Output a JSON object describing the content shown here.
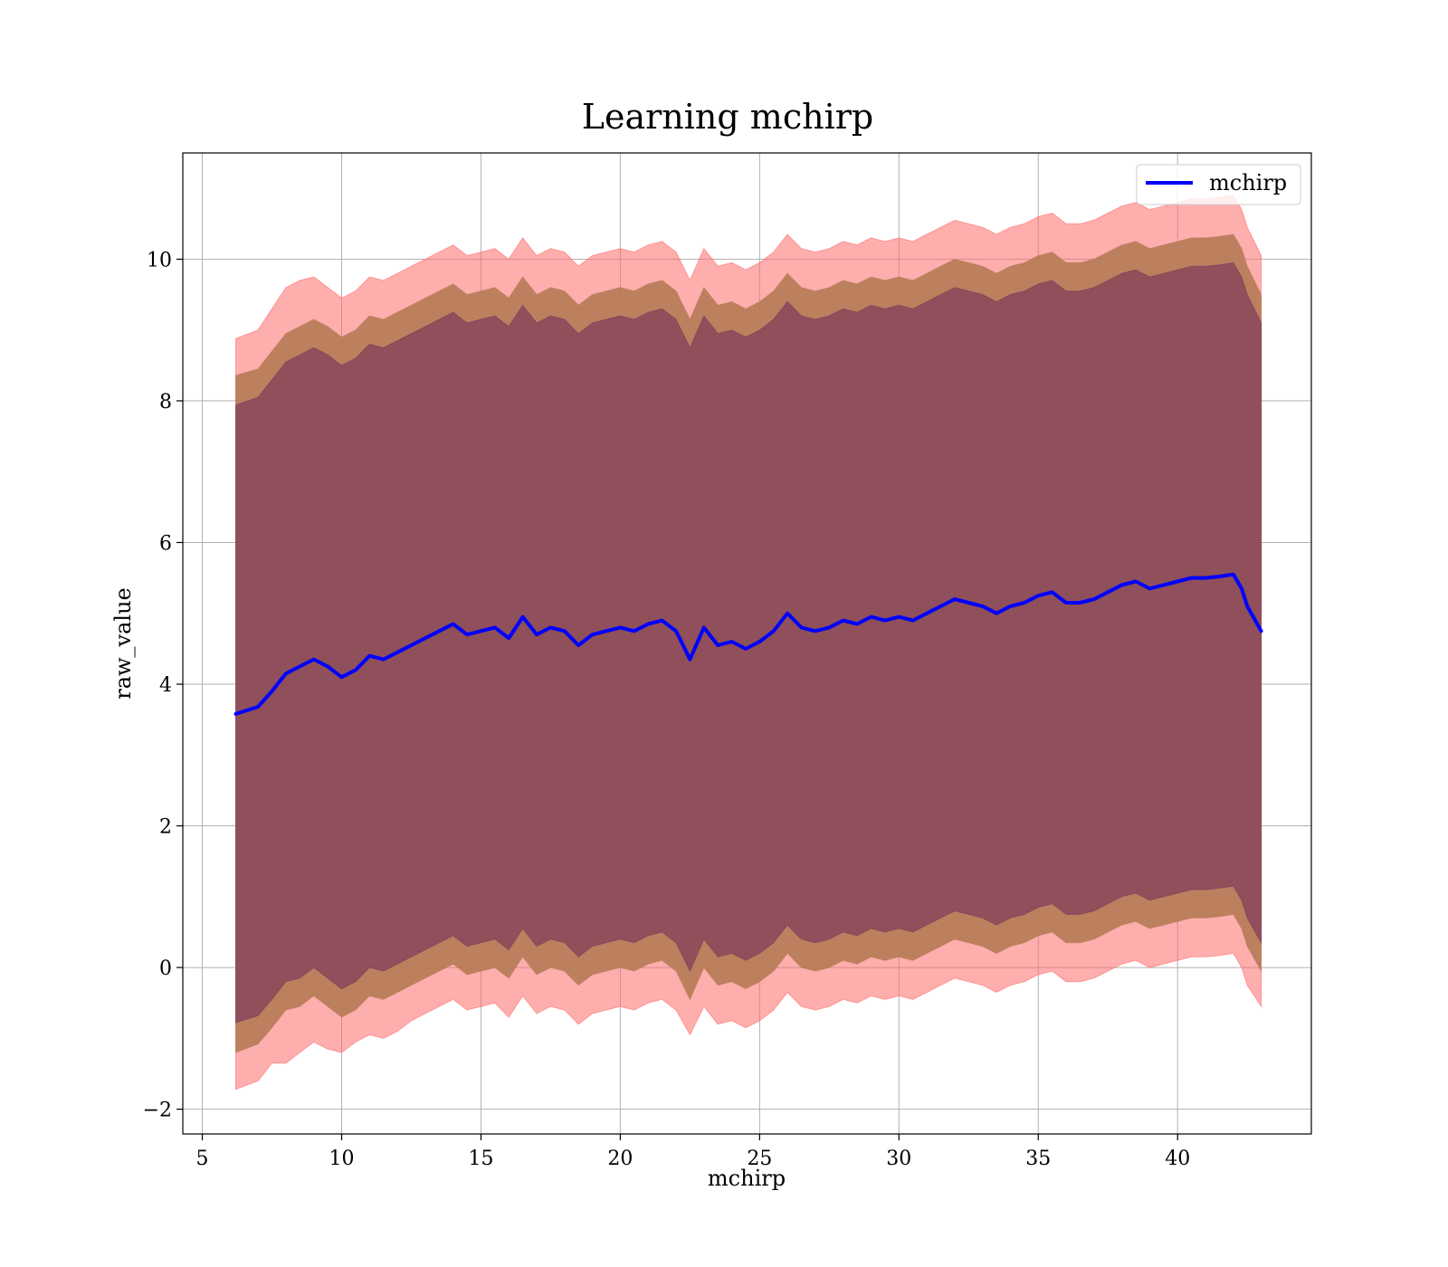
{
  "chart_data": {
    "type": "line",
    "title": "Learning mchirp",
    "xlabel": "mchirp",
    "ylabel": "raw_value",
    "xlim": [
      4.3,
      44.8
    ],
    "ylim": [
      -2.35,
      11.5
    ],
    "xticks": [
      5,
      10,
      15,
      20,
      25,
      30,
      35,
      40
    ],
    "yticks": [
      -2,
      0,
      2,
      4,
      6,
      8,
      10
    ],
    "xtick_labels": [
      "5",
      "10",
      "15",
      "20",
      "25",
      "30",
      "35",
      "40"
    ],
    "ytick_labels": [
      "−2",
      "0",
      "2",
      "4",
      "6",
      "8",
      "10"
    ],
    "grid": true,
    "legend": {
      "placement": "top-right",
      "entries": [
        "mchirp"
      ]
    },
    "colors": {
      "line": "#0000ff",
      "band_outer": "#ff6b6b",
      "band_middle": "#b57b55",
      "band_inner": "#7e3b5a",
      "grid": "#b0b0b0"
    },
    "x": [
      6.2,
      7.0,
      7.5,
      8.0,
      8.5,
      9.0,
      9.5,
      10.0,
      10.5,
      11.0,
      11.5,
      12.0,
      12.5,
      13.0,
      13.5,
      14.0,
      14.5,
      15.0,
      15.5,
      16.0,
      16.5,
      17.0,
      17.5,
      18.0,
      18.5,
      19.0,
      19.5,
      20.0,
      20.5,
      21.0,
      21.5,
      22.0,
      22.5,
      23.0,
      23.5,
      24.0,
      24.5,
      25.0,
      25.5,
      26.0,
      26.5,
      27.0,
      27.5,
      28.0,
      28.5,
      29.0,
      29.5,
      30.0,
      30.5,
      31.0,
      31.5,
      32.0,
      32.5,
      33.0,
      33.5,
      34.0,
      34.5,
      35.0,
      35.5,
      36.0,
      36.5,
      37.0,
      37.5,
      38.0,
      38.5,
      39.0,
      39.5,
      40.0,
      40.5,
      41.0,
      41.5,
      42.0,
      42.3,
      42.5,
      43.0
    ],
    "series": [
      {
        "name": "mchirp",
        "values": [
          3.58,
          3.68,
          3.9,
          4.15,
          4.25,
          4.35,
          4.25,
          4.1,
          4.2,
          4.4,
          4.35,
          4.45,
          4.55,
          4.65,
          4.75,
          4.85,
          4.7,
          4.75,
          4.8,
          4.65,
          4.95,
          4.7,
          4.8,
          4.75,
          4.55,
          4.7,
          4.75,
          4.8,
          4.75,
          4.85,
          4.9,
          4.75,
          4.35,
          4.8,
          4.55,
          4.6,
          4.5,
          4.6,
          4.75,
          5.0,
          4.8,
          4.75,
          4.8,
          4.9,
          4.85,
          4.95,
          4.9,
          4.95,
          4.9,
          5.0,
          5.1,
          5.2,
          5.15,
          5.1,
          5.0,
          5.1,
          5.15,
          5.25,
          5.3,
          5.15,
          5.15,
          5.2,
          5.3,
          5.4,
          5.45,
          5.35,
          5.4,
          5.45,
          5.5,
          5.5,
          5.52,
          5.55,
          5.35,
          5.1,
          4.75
        ]
      }
    ],
    "bands": [
      {
        "level": "outer",
        "lower": [
          -1.72,
          -1.6,
          -1.35,
          -1.35,
          -1.2,
          -1.05,
          -1.15,
          -1.2,
          -1.05,
          -0.95,
          -1.0,
          -0.9,
          -0.75,
          -0.65,
          -0.55,
          -0.45,
          -0.6,
          -0.55,
          -0.5,
          -0.7,
          -0.4,
          -0.65,
          -0.55,
          -0.6,
          -0.8,
          -0.65,
          -0.6,
          -0.55,
          -0.6,
          -0.5,
          -0.45,
          -0.6,
          -0.95,
          -0.55,
          -0.8,
          -0.75,
          -0.85,
          -0.75,
          -0.6,
          -0.35,
          -0.55,
          -0.6,
          -0.55,
          -0.45,
          -0.5,
          -0.4,
          -0.45,
          -0.4,
          -0.45,
          -0.35,
          -0.25,
          -0.15,
          -0.2,
          -0.25,
          -0.35,
          -0.25,
          -0.2,
          -0.1,
          -0.05,
          -0.2,
          -0.2,
          -0.15,
          -0.05,
          0.05,
          0.1,
          0.0,
          0.05,
          0.1,
          0.15,
          0.15,
          0.17,
          0.2,
          0.0,
          -0.25,
          -0.55
        ],
        "upper": [
          8.88,
          9.0,
          9.3,
          9.6,
          9.7,
          9.75,
          9.6,
          9.45,
          9.55,
          9.75,
          9.7,
          9.8,
          9.9,
          10.0,
          10.1,
          10.2,
          10.05,
          10.1,
          10.15,
          10.0,
          10.3,
          10.05,
          10.15,
          10.1,
          9.9,
          10.05,
          10.1,
          10.15,
          10.1,
          10.2,
          10.25,
          10.1,
          9.7,
          10.15,
          9.9,
          9.95,
          9.85,
          9.95,
          10.1,
          10.35,
          10.15,
          10.1,
          10.15,
          10.25,
          10.2,
          10.3,
          10.25,
          10.3,
          10.25,
          10.35,
          10.45,
          10.55,
          10.5,
          10.45,
          10.35,
          10.45,
          10.5,
          10.6,
          10.65,
          10.5,
          10.5,
          10.55,
          10.65,
          10.75,
          10.8,
          10.7,
          10.75,
          10.8,
          10.85,
          10.85,
          10.87,
          10.9,
          10.7,
          10.45,
          10.05
        ]
      },
      {
        "level": "middle",
        "lower": [
          -1.2,
          -1.08,
          -0.85,
          -0.6,
          -0.55,
          -0.4,
          -0.55,
          -0.7,
          -0.6,
          -0.4,
          -0.45,
          -0.35,
          -0.25,
          -0.15,
          -0.05,
          0.05,
          -0.1,
          -0.05,
          0.0,
          -0.15,
          0.15,
          -0.1,
          0.0,
          -0.05,
          -0.25,
          -0.1,
          -0.05,
          0.0,
          -0.05,
          0.05,
          0.1,
          -0.05,
          -0.45,
          0.0,
          -0.25,
          -0.2,
          -0.3,
          -0.2,
          -0.05,
          0.2,
          0.0,
          -0.05,
          0.0,
          0.1,
          0.05,
          0.15,
          0.1,
          0.15,
          0.1,
          0.2,
          0.3,
          0.4,
          0.35,
          0.3,
          0.2,
          0.3,
          0.35,
          0.45,
          0.5,
          0.35,
          0.35,
          0.4,
          0.5,
          0.6,
          0.65,
          0.55,
          0.6,
          0.65,
          0.7,
          0.7,
          0.72,
          0.75,
          0.55,
          0.3,
          -0.05
        ],
        "upper": [
          8.36,
          8.45,
          8.7,
          8.95,
          9.05,
          9.15,
          9.05,
          8.9,
          9.0,
          9.2,
          9.15,
          9.25,
          9.35,
          9.45,
          9.55,
          9.65,
          9.5,
          9.55,
          9.6,
          9.45,
          9.75,
          9.5,
          9.6,
          9.55,
          9.35,
          9.5,
          9.55,
          9.6,
          9.55,
          9.65,
          9.7,
          9.55,
          9.15,
          9.6,
          9.35,
          9.4,
          9.3,
          9.4,
          9.55,
          9.8,
          9.6,
          9.55,
          9.6,
          9.7,
          9.65,
          9.75,
          9.7,
          9.75,
          9.7,
          9.8,
          9.9,
          10.0,
          9.95,
          9.9,
          9.8,
          9.9,
          9.95,
          10.05,
          10.1,
          9.95,
          9.95,
          10.0,
          10.1,
          10.2,
          10.25,
          10.15,
          10.2,
          10.25,
          10.3,
          10.3,
          10.32,
          10.35,
          10.15,
          9.9,
          9.5
        ]
      },
      {
        "level": "inner",
        "lower": [
          -0.78,
          -0.68,
          -0.45,
          -0.2,
          -0.15,
          0.0,
          -0.15,
          -0.3,
          -0.2,
          0.0,
          -0.05,
          0.05,
          0.15,
          0.25,
          0.35,
          0.45,
          0.3,
          0.35,
          0.4,
          0.25,
          0.55,
          0.3,
          0.4,
          0.35,
          0.15,
          0.3,
          0.35,
          0.4,
          0.35,
          0.45,
          0.5,
          0.35,
          -0.05,
          0.4,
          0.15,
          0.2,
          0.1,
          0.2,
          0.35,
          0.6,
          0.4,
          0.35,
          0.4,
          0.5,
          0.45,
          0.55,
          0.5,
          0.55,
          0.5,
          0.6,
          0.7,
          0.8,
          0.75,
          0.7,
          0.6,
          0.7,
          0.75,
          0.85,
          0.9,
          0.75,
          0.75,
          0.8,
          0.9,
          1.0,
          1.05,
          0.95,
          1.0,
          1.05,
          1.1,
          1.1,
          1.12,
          1.15,
          0.95,
          0.7,
          0.35
        ],
        "upper": [
          7.94,
          8.05,
          8.3,
          8.55,
          8.65,
          8.75,
          8.65,
          8.5,
          8.6,
          8.8,
          8.75,
          8.85,
          8.95,
          9.05,
          9.15,
          9.25,
          9.1,
          9.15,
          9.2,
          9.05,
          9.35,
          9.1,
          9.2,
          9.15,
          8.95,
          9.1,
          9.15,
          9.2,
          9.15,
          9.25,
          9.3,
          9.15,
          8.75,
          9.2,
          8.95,
          9.0,
          8.9,
          9.0,
          9.15,
          9.4,
          9.2,
          9.15,
          9.2,
          9.3,
          9.25,
          9.35,
          9.3,
          9.35,
          9.3,
          9.4,
          9.5,
          9.6,
          9.55,
          9.5,
          9.4,
          9.5,
          9.55,
          9.65,
          9.7,
          9.55,
          9.55,
          9.6,
          9.7,
          9.8,
          9.85,
          9.75,
          9.8,
          9.85,
          9.9,
          9.9,
          9.92,
          9.95,
          9.75,
          9.5,
          9.1
        ]
      }
    ]
  }
}
